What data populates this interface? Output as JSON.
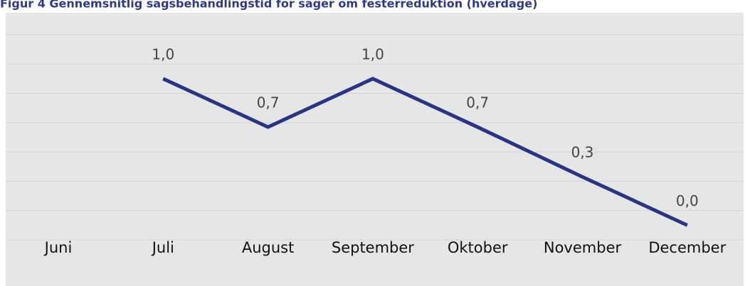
{
  "chart_data": {
    "type": "line",
    "title": "Figur 4 Gennemsnitlig sagsbehandlingstid for sager om festerreduktion (hverdage)",
    "categories": [
      "Juni",
      "Juli",
      "August",
      "September",
      "Oktober",
      "November",
      "December"
    ],
    "values": [
      null,
      1.0,
      0.67,
      1.0,
      0.67,
      0.33,
      0.0
    ],
    "value_labels": [
      null,
      "1,0",
      "0,7",
      "1,0",
      "0,7",
      "0,3",
      "0,0"
    ],
    "color": "#283583",
    "ylim": [
      -0.1,
      1.3
    ],
    "yticks": [
      -0.1,
      0.1,
      0.3,
      0.5,
      0.7,
      0.9,
      1.1,
      1.3
    ],
    "grid": true
  }
}
